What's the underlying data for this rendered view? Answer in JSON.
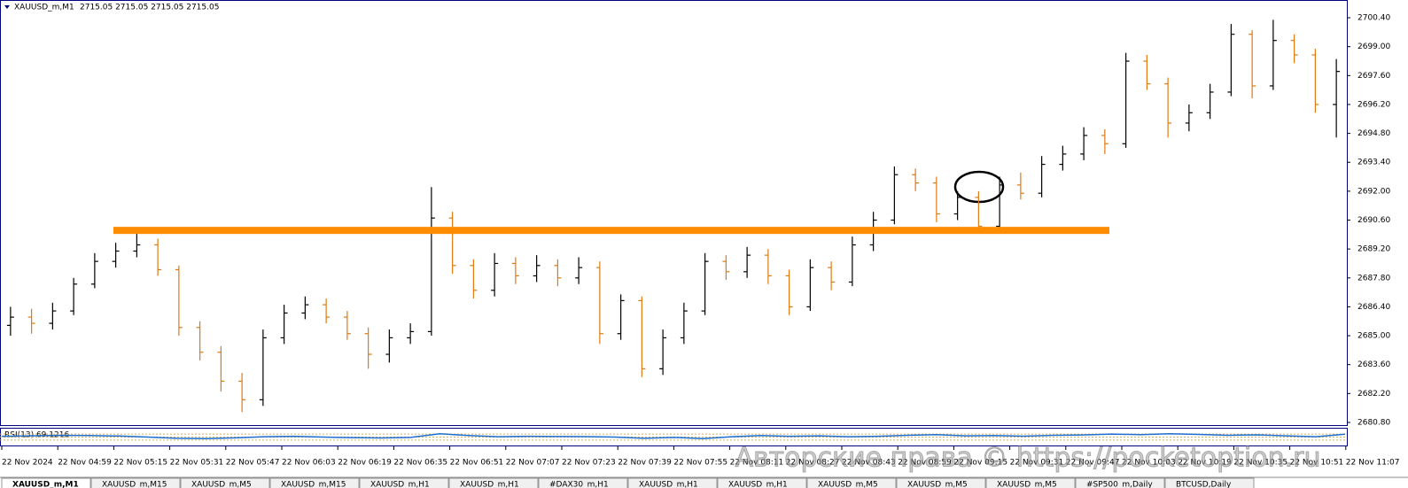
{
  "chart_data": {
    "type": "ohlc",
    "title": "XAUUSD_m,M1",
    "subtitle": "2715.05 2715.05 2715.05 2715.05",
    "open": [
      2685.5,
      2685.9,
      2685.6,
      2686.2,
      2687.5,
      2688.6,
      2689.1,
      2689.4,
      2688.2,
      2685.4,
      2684.2,
      2682.8,
      2681.9,
      2684.9,
      2686.1,
      2686.5,
      2685.9,
      2685.1,
      2684.1,
      2684.9,
      2685.2,
      2690.7,
      2688.4,
      2687.2,
      2688.5,
      2687.9,
      2688.4,
      2687.8,
      2688.3,
      2685.1,
      2686.7,
      2683.4,
      2684.9,
      2686.2,
      2688.6,
      2688.1,
      2688.9,
      2687.9,
      2686.4,
      2688.3,
      2687.6,
      2689.4,
      2690.6,
      2692.8,
      2692.4,
      2690.9,
      2691.7,
      2690.3,
      2692.3,
      2691.9,
      2693.3,
      2693.8,
      2694.7,
      2694.3,
      2698.3,
      2697.2,
      2695.3,
      2695.8,
      2696.8,
      2699.6,
      2697.1,
      2699.3,
      2698.6,
      2696.2
    ],
    "high": [
      2686.4,
      2686.3,
      2686.6,
      2687.8,
      2689.0,
      2689.5,
      2690.1,
      2689.7,
      2688.4,
      2685.7,
      2684.5,
      2683.2,
      2685.3,
      2686.5,
      2686.9,
      2686.8,
      2686.2,
      2685.4,
      2685.3,
      2685.6,
      2692.2,
      2691.0,
      2688.7,
      2689.0,
      2688.8,
      2688.9,
      2688.7,
      2688.8,
      2688.6,
      2687.0,
      2686.9,
      2685.3,
      2686.6,
      2689.0,
      2688.9,
      2689.3,
      2689.2,
      2688.2,
      2688.7,
      2688.6,
      2689.8,
      2691.0,
      2693.2,
      2693.1,
      2692.7,
      2692.0,
      2692.0,
      2692.7,
      2692.9,
      2693.7,
      2694.2,
      2695.1,
      2695.0,
      2698.7,
      2698.6,
      2697.5,
      2696.2,
      2697.2,
      2700.1,
      2699.8,
      2700.3,
      2699.6,
      2698.9,
      2698.4
    ],
    "low": [
      2685.0,
      2685.1,
      2685.3,
      2686.0,
      2687.3,
      2688.3,
      2688.8,
      2687.9,
      2685.0,
      2683.8,
      2682.3,
      2681.3,
      2681.6,
      2684.6,
      2685.8,
      2685.6,
      2684.8,
      2683.4,
      2683.7,
      2684.6,
      2685.0,
      2688.0,
      2686.8,
      2686.9,
      2687.5,
      2687.6,
      2687.4,
      2687.5,
      2684.6,
      2684.8,
      2683.0,
      2683.1,
      2684.6,
      2686.0,
      2687.7,
      2687.8,
      2687.5,
      2686.0,
      2686.2,
      2687.2,
      2687.4,
      2689.1,
      2690.4,
      2692.0,
      2690.5,
      2690.6,
      2690.0,
      2690.1,
      2691.6,
      2691.7,
      2693.0,
      2693.5,
      2693.8,
      2694.1,
      2696.9,
      2694.6,
      2694.9,
      2695.5,
      2696.6,
      2696.5,
      2696.9,
      2698.2,
      2695.8,
      2694.6
    ],
    "close": [
      2685.9,
      2685.6,
      2686.2,
      2687.5,
      2688.6,
      2689.1,
      2689.4,
      2688.2,
      2685.4,
      2684.2,
      2682.8,
      2681.9,
      2684.9,
      2686.1,
      2686.5,
      2685.9,
      2685.1,
      2684.1,
      2684.9,
      2685.2,
      2690.7,
      2688.4,
      2687.2,
      2688.5,
      2687.9,
      2688.4,
      2687.8,
      2688.3,
      2685.1,
      2686.7,
      2683.4,
      2684.9,
      2686.2,
      2688.6,
      2688.1,
      2688.9,
      2687.9,
      2686.4,
      2688.3,
      2687.6,
      2689.4,
      2690.6,
      2692.8,
      2692.4,
      2690.9,
      2691.7,
      2690.3,
      2692.3,
      2691.9,
      2693.3,
      2693.8,
      2694.7,
      2694.3,
      2698.3,
      2697.2,
      2695.3,
      2695.8,
      2696.8,
      2699.6,
      2697.1,
      2699.3,
      2698.6,
      2696.2,
      2697.8
    ],
    "up_color": "#000000",
    "down_color": "#e07a10",
    "ylim": [
      2680.67,
      2701.26
    ],
    "yticks": [
      {
        "value": 2700.4,
        "label": "2700.40"
      },
      {
        "value": 2699.0,
        "label": "2699.00"
      },
      {
        "value": 2697.6,
        "label": "2697.60"
      },
      {
        "value": 2696.2,
        "label": "2696.20"
      },
      {
        "value": 2694.8,
        "label": "2694.80"
      },
      {
        "value": 2693.4,
        "label": "2693.40"
      },
      {
        "value": 2692.0,
        "label": "2692.00"
      },
      {
        "value": 2690.6,
        "label": "2690.60"
      },
      {
        "value": 2689.2,
        "label": "2689.20"
      },
      {
        "value": 2687.8,
        "label": "2687.80"
      },
      {
        "value": 2686.4,
        "label": "2686.40"
      },
      {
        "value": 2685.0,
        "label": "2685.00"
      },
      {
        "value": 2683.6,
        "label": "2683.60"
      },
      {
        "value": 2682.2,
        "label": "2682.20"
      },
      {
        "value": 2680.8,
        "label": "2680.80"
      }
    ],
    "level": {
      "value": 2690.1,
      "color": "#ff8c00"
    },
    "time_labels": [
      "22 Nov 2024",
      "22 Nov 04:59",
      "22 Nov 05:15",
      "22 Nov 05:31",
      "22 Nov 05:47",
      "22 Nov 06:03",
      "22 Nov 06:19",
      "22 Nov 06:35",
      "22 Nov 06:51",
      "22 Nov 07:07",
      "22 Nov 07:23",
      "22 Nov 07:39",
      "22 Nov 07:55",
      "22 Nov 08:11",
      "22 Nov 08:27",
      "22 Nov 08:43",
      "22 Nov 08:59",
      "22 Nov 09:15",
      "22 Nov 09:31",
      "22 Nov 09:47",
      "22 Nov 10:03",
      "22 Nov 10:19",
      "22 Nov 10:35",
      "22 Nov 10:51",
      "22 Nov 11:07"
    ],
    "rsi": {
      "label": "RSI(13) 69.1216",
      "color": "#1e6fd0",
      "ylim": [
        0,
        100
      ],
      "values": [
        55,
        58,
        62,
        60,
        57,
        50,
        42,
        40,
        45,
        52,
        55,
        50,
        46,
        44,
        48,
        72,
        60,
        52,
        55,
        54,
        53,
        50,
        42,
        48,
        40,
        52,
        60,
        55,
        58,
        52,
        55,
        62,
        66,
        58,
        60,
        56,
        62,
        64,
        70,
        66,
        72,
        68,
        62,
        65,
        58,
        52,
        69
      ]
    },
    "watermark": "Авторские права © https://pocketoption.ru",
    "tabs": [
      "XAUUSD_m,M1",
      "XAUUSD_m,M15",
      "XAUUSD_m,M5",
      "XAUUSD_m,M15",
      "XAUUSD_m,H1",
      "XAUUSD_m,H1",
      "#DAX30_m,H1",
      "XAUUSD_m,H1",
      "XAUUSD_m,H1",
      "XAUUSD_m,M5",
      "XAUUSD_m,M5",
      "XAUUSD_m,M5",
      "#SP500_m,Daily",
      "BTCUSD,Daily"
    ]
  }
}
